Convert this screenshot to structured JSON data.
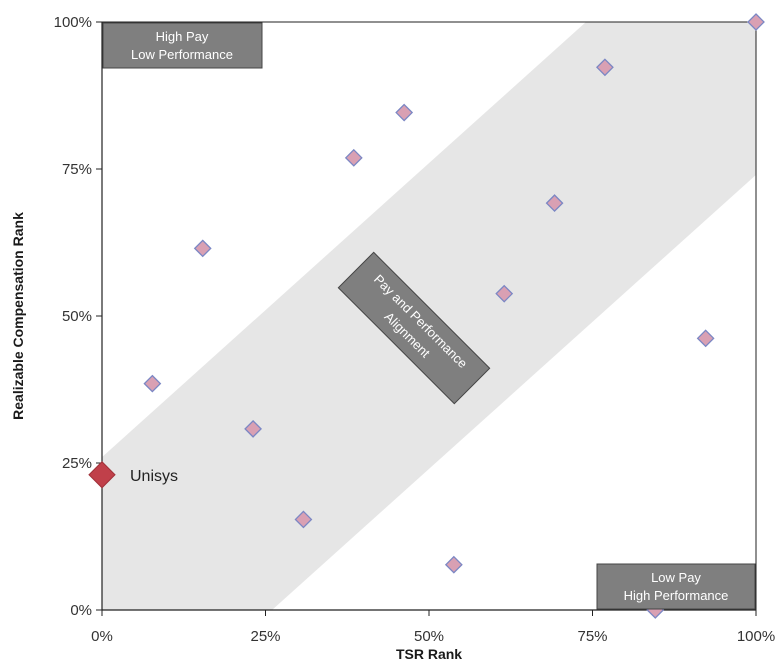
{
  "chart_data": {
    "type": "scatter",
    "title": "",
    "xlabel": "TSR Rank",
    "ylabel": "Realizable Compensation Rank",
    "xlim": [
      0,
      1
    ],
    "ylim": [
      0,
      1
    ],
    "x_ticks": [
      "0%",
      "25%",
      "50%",
      "75%",
      "100%"
    ],
    "y_ticks": [
      "0%",
      "25%",
      "50%",
      "75%",
      "100%"
    ],
    "grid": false,
    "colors": {
      "point_fill": "#d9a0b3",
      "point_stroke": "#7b87c4",
      "highlight_fill": "#c0404a",
      "band_fill": "#e6e6e6",
      "box_fill": "#7f7f7f"
    },
    "alignment_band": {
      "offset": 0.26,
      "label_line1": "Pay and Performance",
      "label_line2": "Alignment"
    },
    "regions": {
      "top_left": {
        "line1": "High Pay",
        "line2": "Low Performance"
      },
      "bottom_right": {
        "line1": "Low Pay",
        "line2": "High Performance"
      }
    },
    "highlight": {
      "name": "Unisys",
      "x": 0.0,
      "y": 0.23
    },
    "series": [
      {
        "points": [
          {
            "x": 0.077,
            "y": 0.385
          },
          {
            "x": 0.154,
            "y": 0.615
          },
          {
            "x": 0.231,
            "y": 0.308
          },
          {
            "x": 0.308,
            "y": 0.154
          },
          {
            "x": 0.385,
            "y": 0.769
          },
          {
            "x": 0.462,
            "y": 0.846
          },
          {
            "x": 0.538,
            "y": 0.077
          },
          {
            "x": 0.615,
            "y": 0.538
          },
          {
            "x": 0.692,
            "y": 0.692
          },
          {
            "x": 0.769,
            "y": 0.923
          },
          {
            "x": 0.846,
            "y": 0.0
          },
          {
            "x": 0.923,
            "y": 0.462
          },
          {
            "x": 1.0,
            "y": 1.0
          }
        ]
      }
    ]
  }
}
